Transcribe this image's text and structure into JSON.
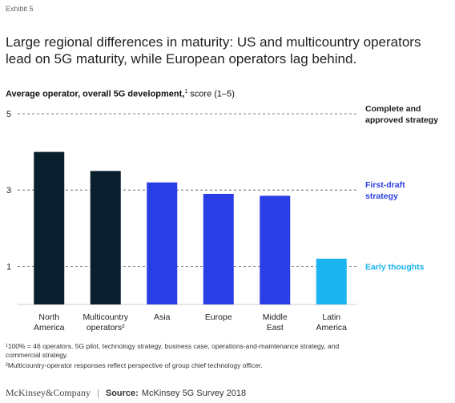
{
  "exhibit": "Exhibit 5",
  "title_line1": "Large regional differences in maturity: US and multicountry operators",
  "title_line2": "lead on 5G maturity, while European operators lag behind.",
  "subtitle_bold": "Average operator, overall 5G development,",
  "subtitle_sup": "1",
  "subtitle_rest": " score (1–5)",
  "footnote1_line1": "¹100% = 46 operators. 5G pilot, technology strategy, business case, operations-and-maintenance strategy, and",
  "footnote1_line2": "commercial strategy.",
  "footnote2": "²Multicountry-operator responses reflect perspective of group chief technology officer.",
  "footer": {
    "logo": "McKinsey&Company",
    "separator": "|",
    "source_label": "Source:",
    "source_text": "McKinsey 5G Survey 2018"
  },
  "colors": {
    "dark": "#0a1f2e",
    "blue": "#2a3ee6",
    "cyan": "#1ab4f0",
    "label_dark": "#1a1a1a"
  },
  "chart_data": {
    "type": "bar",
    "categories": [
      [
        "North",
        "America"
      ],
      [
        "Multicountry",
        "operators²"
      ],
      [
        "Asia"
      ],
      [
        "Europe"
      ],
      [
        "Middle",
        "East"
      ],
      [
        "Latin",
        "America"
      ]
    ],
    "values": [
      4.0,
      3.5,
      3.2,
      2.9,
      2.85,
      1.2
    ],
    "bar_colors": [
      "#0a1f2e",
      "#0a1f2e",
      "#2a3ee6",
      "#2a3ee6",
      "#2a3ee6",
      "#1ab4f0"
    ],
    "ylim": [
      0,
      5
    ],
    "yticks": [
      1,
      3,
      5
    ],
    "reference_lines": [
      {
        "value": 5,
        "label": [
          "Complete and",
          "approved strategy"
        ],
        "color": "#1a1a1a"
      },
      {
        "value": 3,
        "label": [
          "First-draft",
          "strategy"
        ],
        "color": "#2a3ee6"
      },
      {
        "value": 1,
        "label": [
          "Early thoughts"
        ],
        "color": "#1ab4f0"
      }
    ],
    "grid": false
  }
}
